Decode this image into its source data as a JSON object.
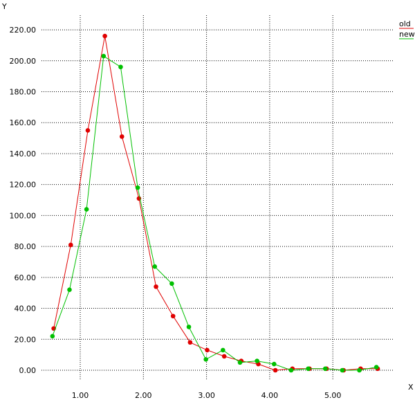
{
  "chart_data": {
    "type": "line",
    "xlabel": "X",
    "ylabel": "Y",
    "xlim": [
      0.5,
      5.82
    ],
    "ylim": [
      -6,
      226
    ],
    "x_ticks": [
      1.0,
      2.0,
      3.0,
      4.0,
      5.0
    ],
    "x_tick_labels": [
      "1.00",
      "2.00",
      "3.00",
      "4.00",
      "5.00"
    ],
    "y_ticks": [
      0,
      20,
      40,
      60,
      80,
      100,
      120,
      140,
      160,
      180,
      200,
      220
    ],
    "y_tick_labels": [
      "0.00",
      "20.00",
      "40.00",
      "60.00",
      "80.00",
      "100.00",
      "120.00",
      "140.00",
      "160.00",
      "180.00",
      "200.00",
      "220.00"
    ],
    "grid": true,
    "legend": "top-right",
    "series": [
      {
        "name": "old",
        "color": "#e00000",
        "x": [
          0.58,
          0.85,
          1.12,
          1.39,
          1.66,
          1.93,
          2.2,
          2.47,
          2.74,
          3.01,
          3.28,
          3.55,
          3.82,
          4.09,
          4.36,
          4.63,
          4.9,
          5.17,
          5.44,
          5.71
        ],
        "y": [
          27,
          81,
          155,
          216,
          151,
          111,
          54,
          35,
          18,
          13,
          9,
          6,
          4,
          0,
          1,
          1,
          1,
          0,
          1,
          1
        ]
      },
      {
        "name": "new",
        "color": "#00c000",
        "x": [
          0.56,
          0.83,
          1.1,
          1.37,
          1.64,
          1.91,
          2.18,
          2.45,
          2.72,
          2.99,
          3.26,
          3.53,
          3.8,
          4.07,
          4.34,
          4.61,
          4.88,
          5.15,
          5.42,
          5.69
        ],
        "y": [
          22,
          52,
          104,
          203,
          196,
          118,
          67,
          56,
          28,
          7,
          13,
          5,
          6,
          4,
          0,
          1,
          1,
          0,
          0,
          2
        ]
      }
    ]
  }
}
